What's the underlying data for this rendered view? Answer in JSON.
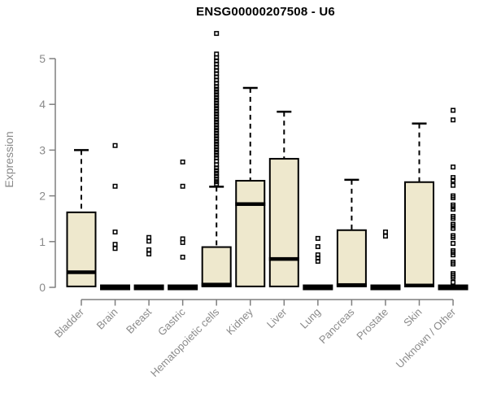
{
  "title": "ENSG00000207508 - U6",
  "colors": {
    "background": "#FFFFFF",
    "box_fill": "#EEE8CD",
    "box_border": "#000000",
    "median": "#000000",
    "whisker": "#000000",
    "outlier": "#000000",
    "axis_line": "#7F7F7F",
    "tick_label": "#8A8A8A",
    "title_color": "#000000"
  },
  "chart_data": {
    "type": "boxplot",
    "title": "ENSG00000207508 - U6",
    "xlabel": "",
    "ylabel": "Expression",
    "ylim": [
      0,
      5.6
    ],
    "yticks": [
      0,
      1,
      2,
      3,
      4,
      5
    ],
    "grid": false,
    "legend": "none",
    "categories": [
      "Bladder",
      "Brain",
      "Breast",
      "Gastric",
      "Hematopoietic cells",
      "Kidney",
      "Liver",
      "Lung",
      "Pancreas",
      "Prostate",
      "Skin",
      "Unknown / Other"
    ],
    "series": [
      {
        "name": "Bladder",
        "q1": 0.02,
        "median": 0.33,
        "q3": 1.64,
        "whisker_low": 0.02,
        "whisker_high": 3.0,
        "outliers": []
      },
      {
        "name": "Brain",
        "q1": 0.0,
        "median": 0.02,
        "q3": 0.04,
        "whisker_low": 0.0,
        "whisker_high": 0.04,
        "outliers": [
          3.1,
          2.21,
          1.21,
          0.94,
          0.85
        ]
      },
      {
        "name": "Breast",
        "q1": 0.0,
        "median": 0.02,
        "q3": 0.04,
        "whisker_low": 0.0,
        "whisker_high": 0.04,
        "outliers": [
          1.09,
          1.01,
          0.82,
          0.73
        ]
      },
      {
        "name": "Gastric",
        "q1": 0.0,
        "median": 0.02,
        "q3": 0.04,
        "whisker_low": 0.0,
        "whisker_high": 0.04,
        "outliers": [
          2.74,
          2.21,
          1.06,
          0.98,
          0.66
        ]
      },
      {
        "name": "Hematopoietic cells",
        "q1": 0.02,
        "median": 0.06,
        "q3": 0.88,
        "whisker_low": 0.02,
        "whisker_high": 2.2,
        "outliers": [
          5.55,
          5.1,
          5.02,
          4.95,
          4.88,
          4.81,
          4.74,
          4.67,
          4.6,
          4.53,
          4.46,
          4.39,
          4.33,
          4.27,
          4.21,
          4.15,
          4.09,
          4.03,
          3.97,
          3.91,
          3.85,
          3.79,
          3.73,
          3.67,
          3.61,
          3.55,
          3.49,
          3.43,
          3.37,
          3.31,
          3.25,
          3.19,
          3.13,
          3.07,
          3.01,
          2.95,
          2.89,
          2.83,
          2.76,
          2.68,
          2.61,
          2.55,
          2.49,
          2.43,
          2.37,
          2.31,
          2.26
        ]
      },
      {
        "name": "Kidney",
        "q1": 0.02,
        "median": 1.82,
        "q3": 2.33,
        "whisker_low": 0.02,
        "whisker_high": 4.36,
        "outliers": []
      },
      {
        "name": "Liver",
        "q1": 0.02,
        "median": 0.62,
        "q3": 2.81,
        "whisker_low": 0.02,
        "whisker_high": 3.84,
        "outliers": []
      },
      {
        "name": "Lung",
        "q1": 0.0,
        "median": 0.02,
        "q3": 0.04,
        "whisker_low": 0.0,
        "whisker_high": 0.04,
        "outliers": [
          1.07,
          0.89,
          0.71,
          0.64,
          0.57
        ]
      },
      {
        "name": "Pancreas",
        "q1": 0.02,
        "median": 0.05,
        "q3": 1.25,
        "whisker_low": 0.02,
        "whisker_high": 2.35,
        "outliers": []
      },
      {
        "name": "Prostate",
        "q1": 0.0,
        "median": 0.02,
        "q3": 0.04,
        "whisker_low": 0.0,
        "whisker_high": 0.04,
        "outliers": [
          1.21,
          1.12
        ]
      },
      {
        "name": "Skin",
        "q1": 0.02,
        "median": 0.04,
        "q3": 2.3,
        "whisker_low": 0.02,
        "whisker_high": 3.58,
        "outliers": []
      },
      {
        "name": "Unknown / Other",
        "q1": 0.0,
        "median": 0.02,
        "q3": 0.04,
        "whisker_low": 0.0,
        "whisker_high": 0.04,
        "outliers": [
          3.87,
          3.66,
          2.63,
          2.4,
          2.34,
          2.23,
          2.0,
          1.96,
          1.8,
          1.76,
          1.71,
          1.55,
          1.51,
          1.38,
          1.34,
          1.29,
          1.13,
          1.09,
          0.96,
          0.8,
          0.76,
          0.71,
          0.55,
          0.51,
          0.3,
          0.26,
          0.22,
          0.11
        ]
      }
    ]
  }
}
